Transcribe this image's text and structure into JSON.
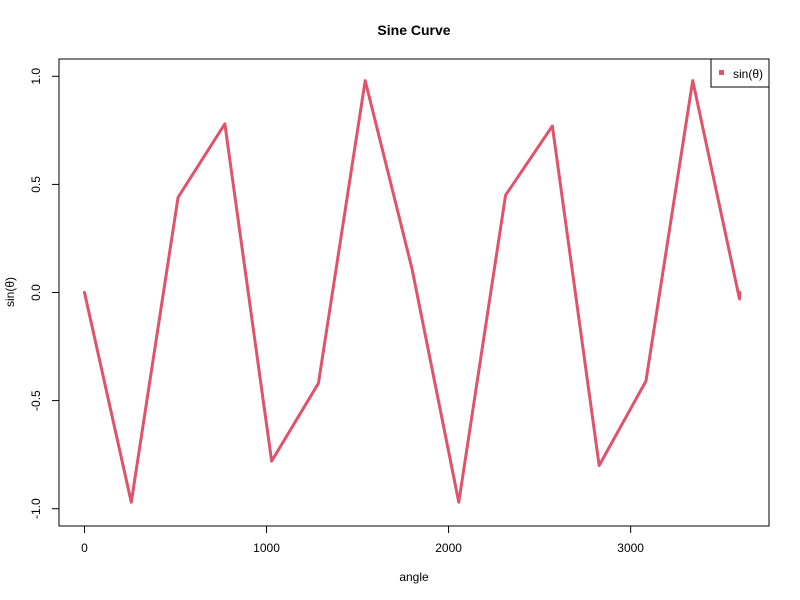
{
  "chart_data": {
    "type": "line",
    "title": "Sine Curve",
    "xlabel": "angle",
    "ylabel": "sin(θ)",
    "xlim": [
      -140,
      3760
    ],
    "ylim": [
      -1.08,
      1.08
    ],
    "xticks": [
      0,
      1000,
      2000,
      3000
    ],
    "yticks": [
      -1.0,
      -0.5,
      0.0,
      0.5,
      1.0
    ],
    "ytick_labels": [
      "-1.0",
      "-0.5",
      "0.0",
      "0.5",
      "1.0"
    ],
    "grid": false,
    "legend": {
      "position": "top-right",
      "entries": [
        "sin(θ)"
      ]
    },
    "series": [
      {
        "name": "sin(θ)",
        "color": "#DF536B",
        "x": [
          0,
          257,
          514,
          771,
          1028,
          1285,
          1542,
          1799,
          2056,
          2313,
          2570,
          2827,
          3084,
          3341,
          3598,
          3600
        ],
        "y": [
          0.0,
          -0.97,
          0.44,
          0.78,
          -0.78,
          -0.42,
          0.98,
          0.11,
          -0.97,
          0.45,
          0.77,
          -0.8,
          -0.41,
          0.98,
          -0.03,
          0.0
        ]
      }
    ]
  }
}
